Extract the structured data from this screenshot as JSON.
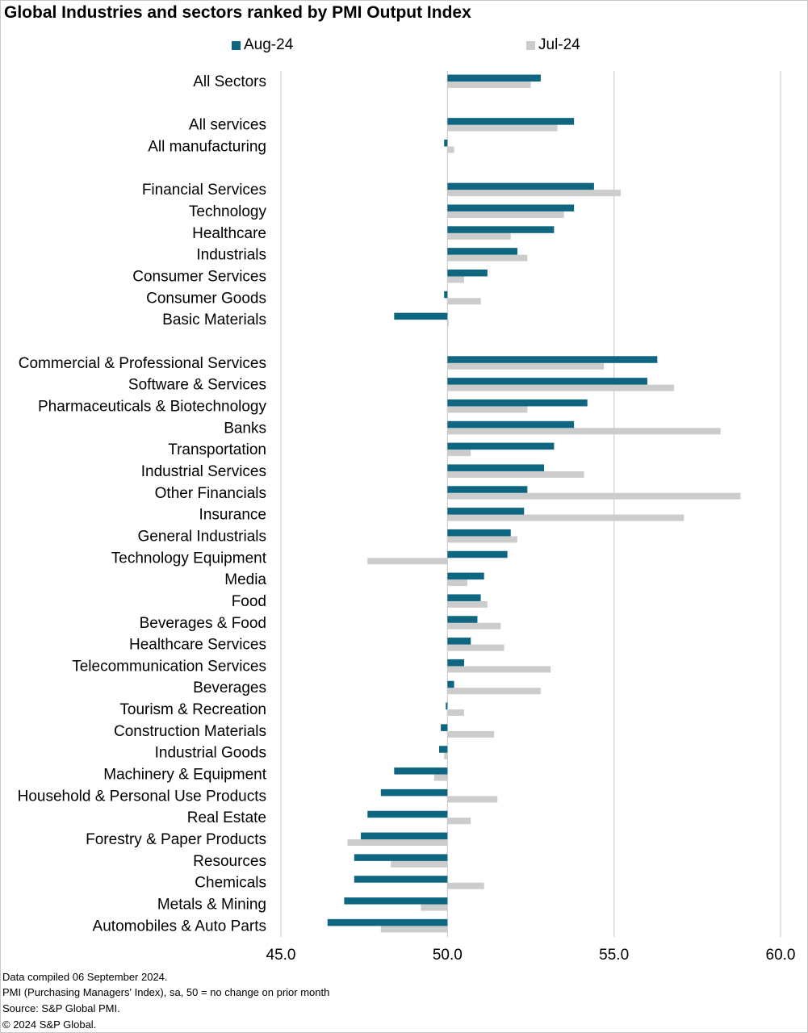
{
  "title": "Global Industries and sectors ranked by PMI Output Index",
  "colors": {
    "aug": "#0e6680",
    "jul": "#cccccc",
    "grid": "#d0d0d0"
  },
  "footer": {
    "line1": "Data compiled 06 September  2024.",
    "line2": "PMI (Purchasing Managers' Index), sa, 50 = no change on prior month",
    "line3": "Source: S&P Global PMI.",
    "line4": "© 2024 S&P Global."
  },
  "chart_data": {
    "type": "bar",
    "orientation": "horizontal",
    "title": "Global Industries and sectors ranked by PMI Output Index",
    "xlim": [
      45.0,
      60.0
    ],
    "x_ticks": [
      "45.0",
      "50.0",
      "55.0",
      "60.0"
    ],
    "baseline": 50,
    "grid": true,
    "legend_position": "top",
    "categories": [
      "All Sectors",
      "",
      "All services",
      "All manufacturing",
      "",
      "Financial Services",
      "Technology",
      "Healthcare",
      "Industrials",
      "Consumer Services",
      "Consumer Goods",
      "Basic Materials",
      "",
      "Commercial & Professional Services",
      "Software & Services",
      "Pharmaceuticals & Biotechnology",
      "Banks",
      "Transportation",
      "Industrial Services",
      "Other Financials",
      "Insurance",
      "General Industrials",
      "Technology Equipment",
      "Media",
      "Food",
      "Beverages & Food",
      "Healthcare Services",
      "Telecommunication Services",
      "Beverages",
      "Tourism & Recreation",
      "Construction Materials",
      "Industrial Goods",
      "Machinery & Equipment",
      "Household & Personal Use Products",
      "Real Estate",
      "Forestry & Paper Products",
      "Resources",
      "Chemicals",
      "Metals & Mining",
      "Automobiles & Auto Parts"
    ],
    "series": [
      {
        "name": "Aug-24",
        "values": [
          52.8,
          null,
          53.8,
          49.9,
          null,
          54.4,
          53.8,
          53.2,
          52.1,
          51.2,
          49.9,
          48.4,
          null,
          56.3,
          56.0,
          54.2,
          53.8,
          53.2,
          52.9,
          52.4,
          52.3,
          51.9,
          51.8,
          51.1,
          51.0,
          50.9,
          50.7,
          50.5,
          50.2,
          49.95,
          49.8,
          49.75,
          48.4,
          48.0,
          47.6,
          47.4,
          47.2,
          47.2,
          46.9,
          46.4
        ]
      },
      {
        "name": "Jul-24",
        "values": [
          52.5,
          null,
          53.3,
          50.2,
          null,
          55.2,
          53.5,
          51.9,
          52.4,
          50.5,
          51.0,
          50.0,
          null,
          54.7,
          56.8,
          52.4,
          58.2,
          50.7,
          54.1,
          58.8,
          57.1,
          52.1,
          47.6,
          50.6,
          51.2,
          51.6,
          51.7,
          53.1,
          52.8,
          50.5,
          51.4,
          49.9,
          49.6,
          51.5,
          50.7,
          47.0,
          48.3,
          51.1,
          49.2,
          48.0
        ]
      }
    ]
  }
}
